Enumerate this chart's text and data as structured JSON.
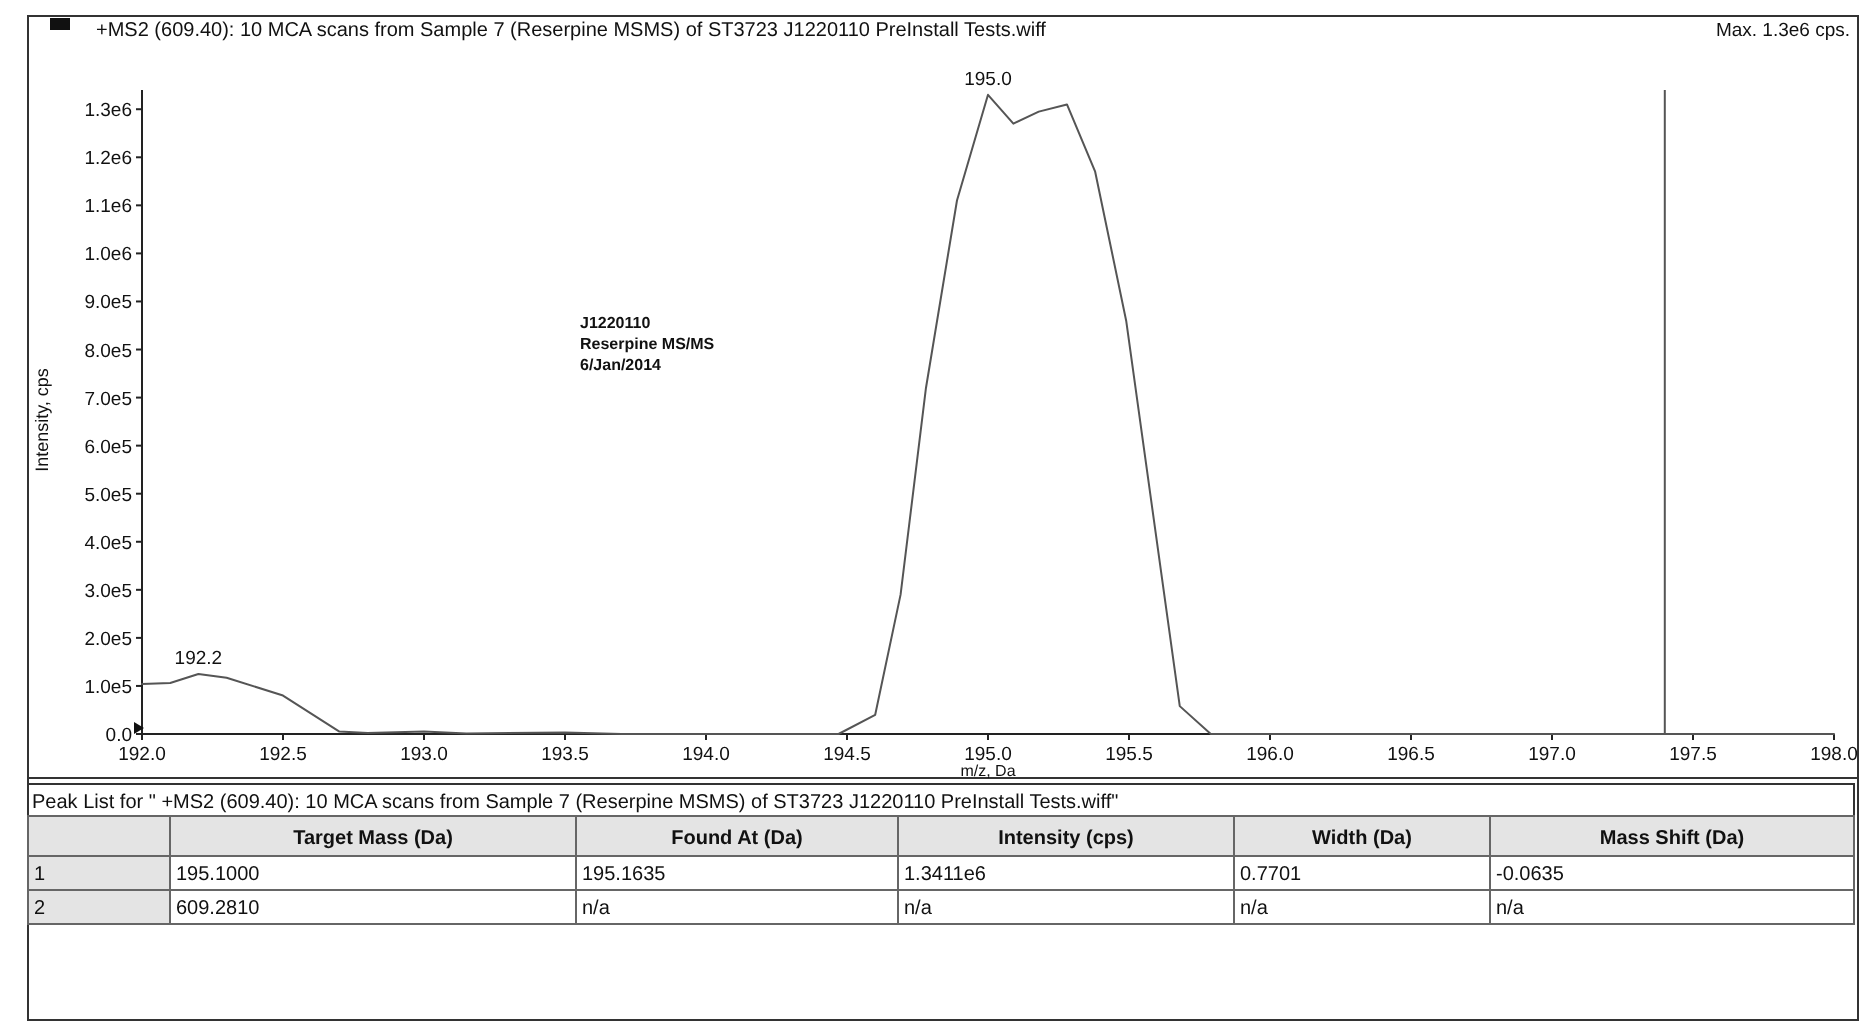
{
  "chart_data": [
    {
      "type": "line",
      "title": "+MS2 (609.40): 10 MCA scans from Sample 7 (Reserpine MSMS) of ST3723 J1220110 PreInstall Tests.wiff",
      "xlabel": "m/z, Da",
      "ylabel": "Intensity, cps",
      "x": [
        192.0,
        192.1,
        192.2,
        192.3,
        192.5,
        192.7,
        192.8,
        193.0,
        193.15,
        193.5,
        193.7,
        194.47,
        194.6,
        194.69,
        194.78,
        194.89,
        195.0,
        195.09,
        195.18,
        195.28,
        195.38,
        195.49,
        195.68,
        195.79,
        198.0
      ],
      "values": [
        104000,
        106000,
        125000,
        117000,
        80000,
        5000,
        2000,
        5000,
        1000,
        3000,
        0,
        0,
        40000,
        290000,
        720000,
        1110000,
        1330000,
        1270000,
        1295000,
        1310000,
        1170000,
        860000,
        58000,
        0,
        0
      ],
      "color": "#555555",
      "xlim": [
        192,
        198
      ],
      "ylim": [
        0,
        1340000
      ],
      "xticks": [
        {
          "value": 192,
          "label": "192.0"
        },
        {
          "value": 192.5,
          "label": "192.5"
        },
        {
          "value": 193,
          "label": "193.0"
        },
        {
          "value": 193.5,
          "label": "193.5"
        },
        {
          "value": 194,
          "label": "194.0"
        },
        {
          "value": 194.5,
          "label": "194.5"
        },
        {
          "value": 195,
          "label": "195.0"
        },
        {
          "value": 195.5,
          "label": "195.5"
        },
        {
          "value": 196,
          "label": "196.0"
        },
        {
          "value": 196.5,
          "label": "196.5"
        },
        {
          "value": 197,
          "label": "197.0"
        },
        {
          "value": 197.5,
          "label": "197.5"
        },
        {
          "value": 198,
          "label": "198.0"
        }
      ],
      "yticks": [
        {
          "value": 0,
          "label": "0.0"
        },
        {
          "value": 100000,
          "label": "1.0e5"
        },
        {
          "value": 200000,
          "label": "2.0e5"
        },
        {
          "value": 300000,
          "label": "3.0e5"
        },
        {
          "value": 400000,
          "label": "4.0e5"
        },
        {
          "value": 500000,
          "label": "5.0e5"
        },
        {
          "value": 600000,
          "label": "6.0e5"
        },
        {
          "value": 700000,
          "label": "7.0e5"
        },
        {
          "value": 800000,
          "label": "8.0e5"
        },
        {
          "value": 900000,
          "label": "9.0e5"
        },
        {
          "value": 1000000,
          "label": "1.0e6"
        },
        {
          "value": 1100000,
          "label": "1.1e6"
        },
        {
          "value": 1200000,
          "label": "1.2e6"
        },
        {
          "value": 1300000,
          "label": "1.3e6"
        }
      ],
      "ref_lines": [
        {
          "axis": "x",
          "value": 197.4,
          "color": "#555555"
        }
      ],
      "annotations": [
        "Max. 1.3e6 cps.",
        "J1220110",
        "Reserpine MS/MS",
        "6/Jan/2014",
        {
          "text": "195.0",
          "x": 195.0,
          "y": 1330000
        },
        {
          "text": "192.2",
          "x": 192.2,
          "y": 125000
        }
      ]
    },
    {
      "type": "other",
      "title": "Peak List for \" +MS2 (609.40): 10 MCA scans from Sample 7 (Reserpine MSMS) of ST3723 J1220110 PreInstall Tests.wiff\"",
      "categories": [
        null,
        "Target Mass (Da)",
        "Found At (Da)",
        "Intensity (cps)",
        "Width (Da)",
        "Mass Shift (Da)"
      ],
      "y_categories": [
        "1",
        "2"
      ],
      "cell_labels": [
        [
          "195.1000",
          "195.1635",
          "1.3411e6",
          "0.7701",
          "-0.0635"
        ],
        [
          "609.2810",
          "n/a",
          "n/a",
          "n/a",
          "n/a"
        ]
      ]
    }
  ]
}
